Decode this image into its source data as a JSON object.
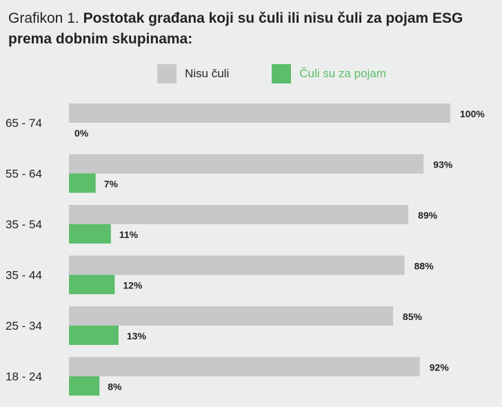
{
  "title": {
    "prefix": "Grafikon 1.",
    "main": "Postotak građana koji su čuli ili nisu čuli za pojam ESG prema dobnim skupinama:"
  },
  "colors": {
    "nisu_culi": "#c6c8c9",
    "culi": "#5cbd6a",
    "background": "#eceeed"
  },
  "chart_data": {
    "type": "bar",
    "orientation": "horizontal",
    "categories": [
      "65 - 74",
      "55 - 64",
      "35 - 54",
      "35 - 44",
      "25 - 34",
      "18 - 24"
    ],
    "series": [
      {
        "name": "Nisu čuli",
        "values": [
          100,
          93,
          89,
          88,
          85,
          92
        ],
        "labels": [
          "100%",
          "93%",
          "89%",
          "88%",
          "85%",
          "92%"
        ]
      },
      {
        "name": "Čuli su za pojam",
        "values": [
          0,
          7,
          11,
          12,
          13,
          8
        ],
        "labels": [
          "0%",
          "7%",
          "11%",
          "12%",
          "13%",
          "8%"
        ]
      }
    ],
    "xlim": [
      0,
      100
    ],
    "grid": false,
    "legend_position": "top"
  }
}
